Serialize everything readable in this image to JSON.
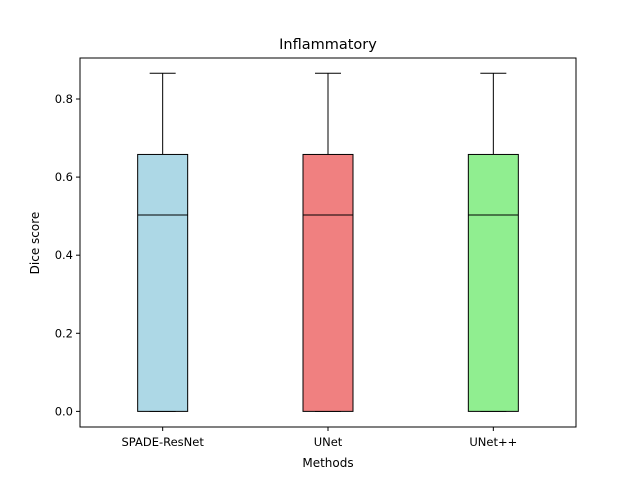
{
  "chart_data": {
    "type": "box",
    "title": "Inflammatory",
    "xlabel": "Methods",
    "ylabel": "Dice score",
    "categories": [
      "SPADE-ResNet",
      "UNet",
      "UNet++"
    ],
    "ylim": [
      -0.04,
      0.905
    ],
    "yticks": [
      0.0,
      0.2,
      0.4,
      0.6,
      0.8
    ],
    "ytick_labels": [
      "0.0",
      "0.2",
      "0.4",
      "0.6",
      "0.8"
    ],
    "grid": false,
    "series": [
      {
        "category": "SPADE-ResNet",
        "min": 0.0,
        "q1": 0.0,
        "median": 0.503,
        "q3": 0.658,
        "max": 0.866,
        "color": "#add8e6"
      },
      {
        "category": "UNet",
        "min": 0.0,
        "q1": 0.0,
        "median": 0.503,
        "q3": 0.658,
        "max": 0.866,
        "color": "#f08080"
      },
      {
        "category": "UNet++",
        "min": 0.0,
        "q1": 0.0,
        "median": 0.503,
        "q3": 0.658,
        "max": 0.866,
        "color": "#90ee90"
      }
    ]
  }
}
